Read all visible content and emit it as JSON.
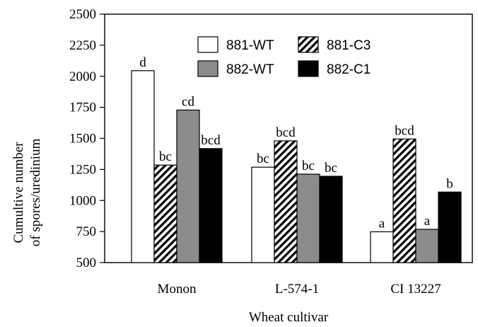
{
  "chart_data": {
    "type": "bar",
    "xlabel": "Wheat cultivar",
    "ylabel_line1": "Cumultive number",
    "ylabel_line2": "of spores/uredinium",
    "ylim": [
      500,
      2500
    ],
    "yticks": [
      500,
      750,
      1000,
      1250,
      1500,
      1750,
      2000,
      2250,
      2500
    ],
    "categories": [
      "Monon",
      "L-574-1",
      "CI 13227"
    ],
    "series": [
      {
        "name": "881-WT",
        "fill": "white",
        "values": [
          2045,
          1268,
          748
        ],
        "labels": [
          "d",
          "bc",
          "a"
        ]
      },
      {
        "name": "881-C3",
        "fill": "hatch",
        "values": [
          1285,
          1480,
          1495
        ],
        "labels": [
          "bc",
          "bcd",
          "bcd"
        ]
      },
      {
        "name": "882-WT",
        "fill": "gray",
        "values": [
          1728,
          1212,
          768
        ],
        "labels": [
          "cd",
          "bc",
          "a"
        ]
      },
      {
        "name": "882-C1",
        "fill": "black",
        "values": [
          1418,
          1195,
          1068
        ],
        "labels": [
          "bcd",
          "bc",
          "b"
        ]
      }
    ],
    "legend_position": "top-right",
    "grid": false,
    "colors": {
      "gray": "#8c8c8c",
      "black": "#000000",
      "white": "#ffffff"
    }
  }
}
